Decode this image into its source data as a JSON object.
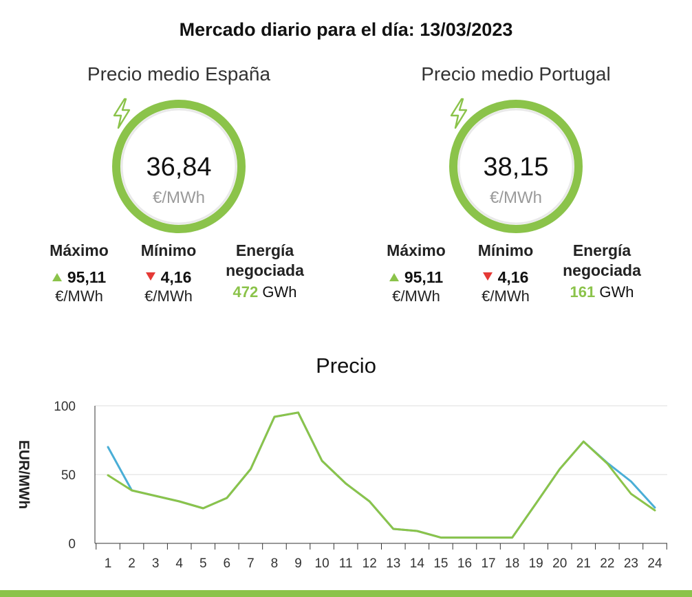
{
  "header": {
    "title": "Mercado diario para el día: 13/03/2023"
  },
  "markets": {
    "es": {
      "title": "Precio medio España",
      "price": "36,84",
      "unit": "€/MWh",
      "max_label": "Máximo",
      "max_value": "95,11",
      "max_unit": "€/MWh",
      "min_label": "Mínimo",
      "min_value": "4,16",
      "min_unit": "€/MWh",
      "energy_label_1": "Energía",
      "energy_label_2": "negociada",
      "energy_value": "472",
      "energy_unit": "GWh"
    },
    "pt": {
      "title": "Precio medio Portugal",
      "price": "38,15",
      "unit": "€/MWh",
      "max_label": "Máximo",
      "max_value": "95,11",
      "max_unit": "€/MWh",
      "min_label": "Mínimo",
      "min_value": "4,16",
      "min_unit": "€/MWh",
      "energy_label_1": "Energía",
      "energy_label_2": "negociada",
      "energy_value": "161",
      "energy_unit": "GWh"
    }
  },
  "colors": {
    "accent_green": "#8bc34a",
    "series_blue": "#4aaed6",
    "down_red": "#e53935",
    "muted_gray": "#9a9a9a"
  },
  "icons": {
    "price_icon": "lightning-bolt-icon",
    "up_icon": "triangle-up-icon",
    "down_icon": "triangle-down-icon"
  },
  "chart_data": {
    "type": "line",
    "title": "Precio",
    "xlabel": "",
    "ylabel": "EUR/MWh",
    "categories": [
      "1",
      "2",
      "3",
      "4",
      "5",
      "6",
      "7",
      "8",
      "9",
      "10",
      "11",
      "12",
      "13",
      "14",
      "15",
      "16",
      "17",
      "18",
      "19",
      "20",
      "21",
      "22",
      "23",
      "24"
    ],
    "yticks": [
      "0",
      "50",
      "100"
    ],
    "ylim": [
      0,
      100
    ],
    "grid": true,
    "series": [
      {
        "color": "#4aaed6",
        "values": [
          70,
          38.5,
          34.5,
          30.5,
          25.5,
          33,
          54,
          92,
          95.1,
          60,
          43.5,
          30.5,
          10.5,
          9,
          4.2,
          4.2,
          4.2,
          4.2,
          29,
          54,
          74,
          58.5,
          45,
          26
        ]
      },
      {
        "color": "#8bc34a",
        "values": [
          49.5,
          38.5,
          34.5,
          30.5,
          25.5,
          33,
          54,
          92,
          95.1,
          60,
          43.5,
          30.5,
          10.5,
          9,
          4.2,
          4.2,
          4.2,
          4.2,
          29,
          54,
          74,
          58,
          36,
          24
        ]
      }
    ]
  }
}
